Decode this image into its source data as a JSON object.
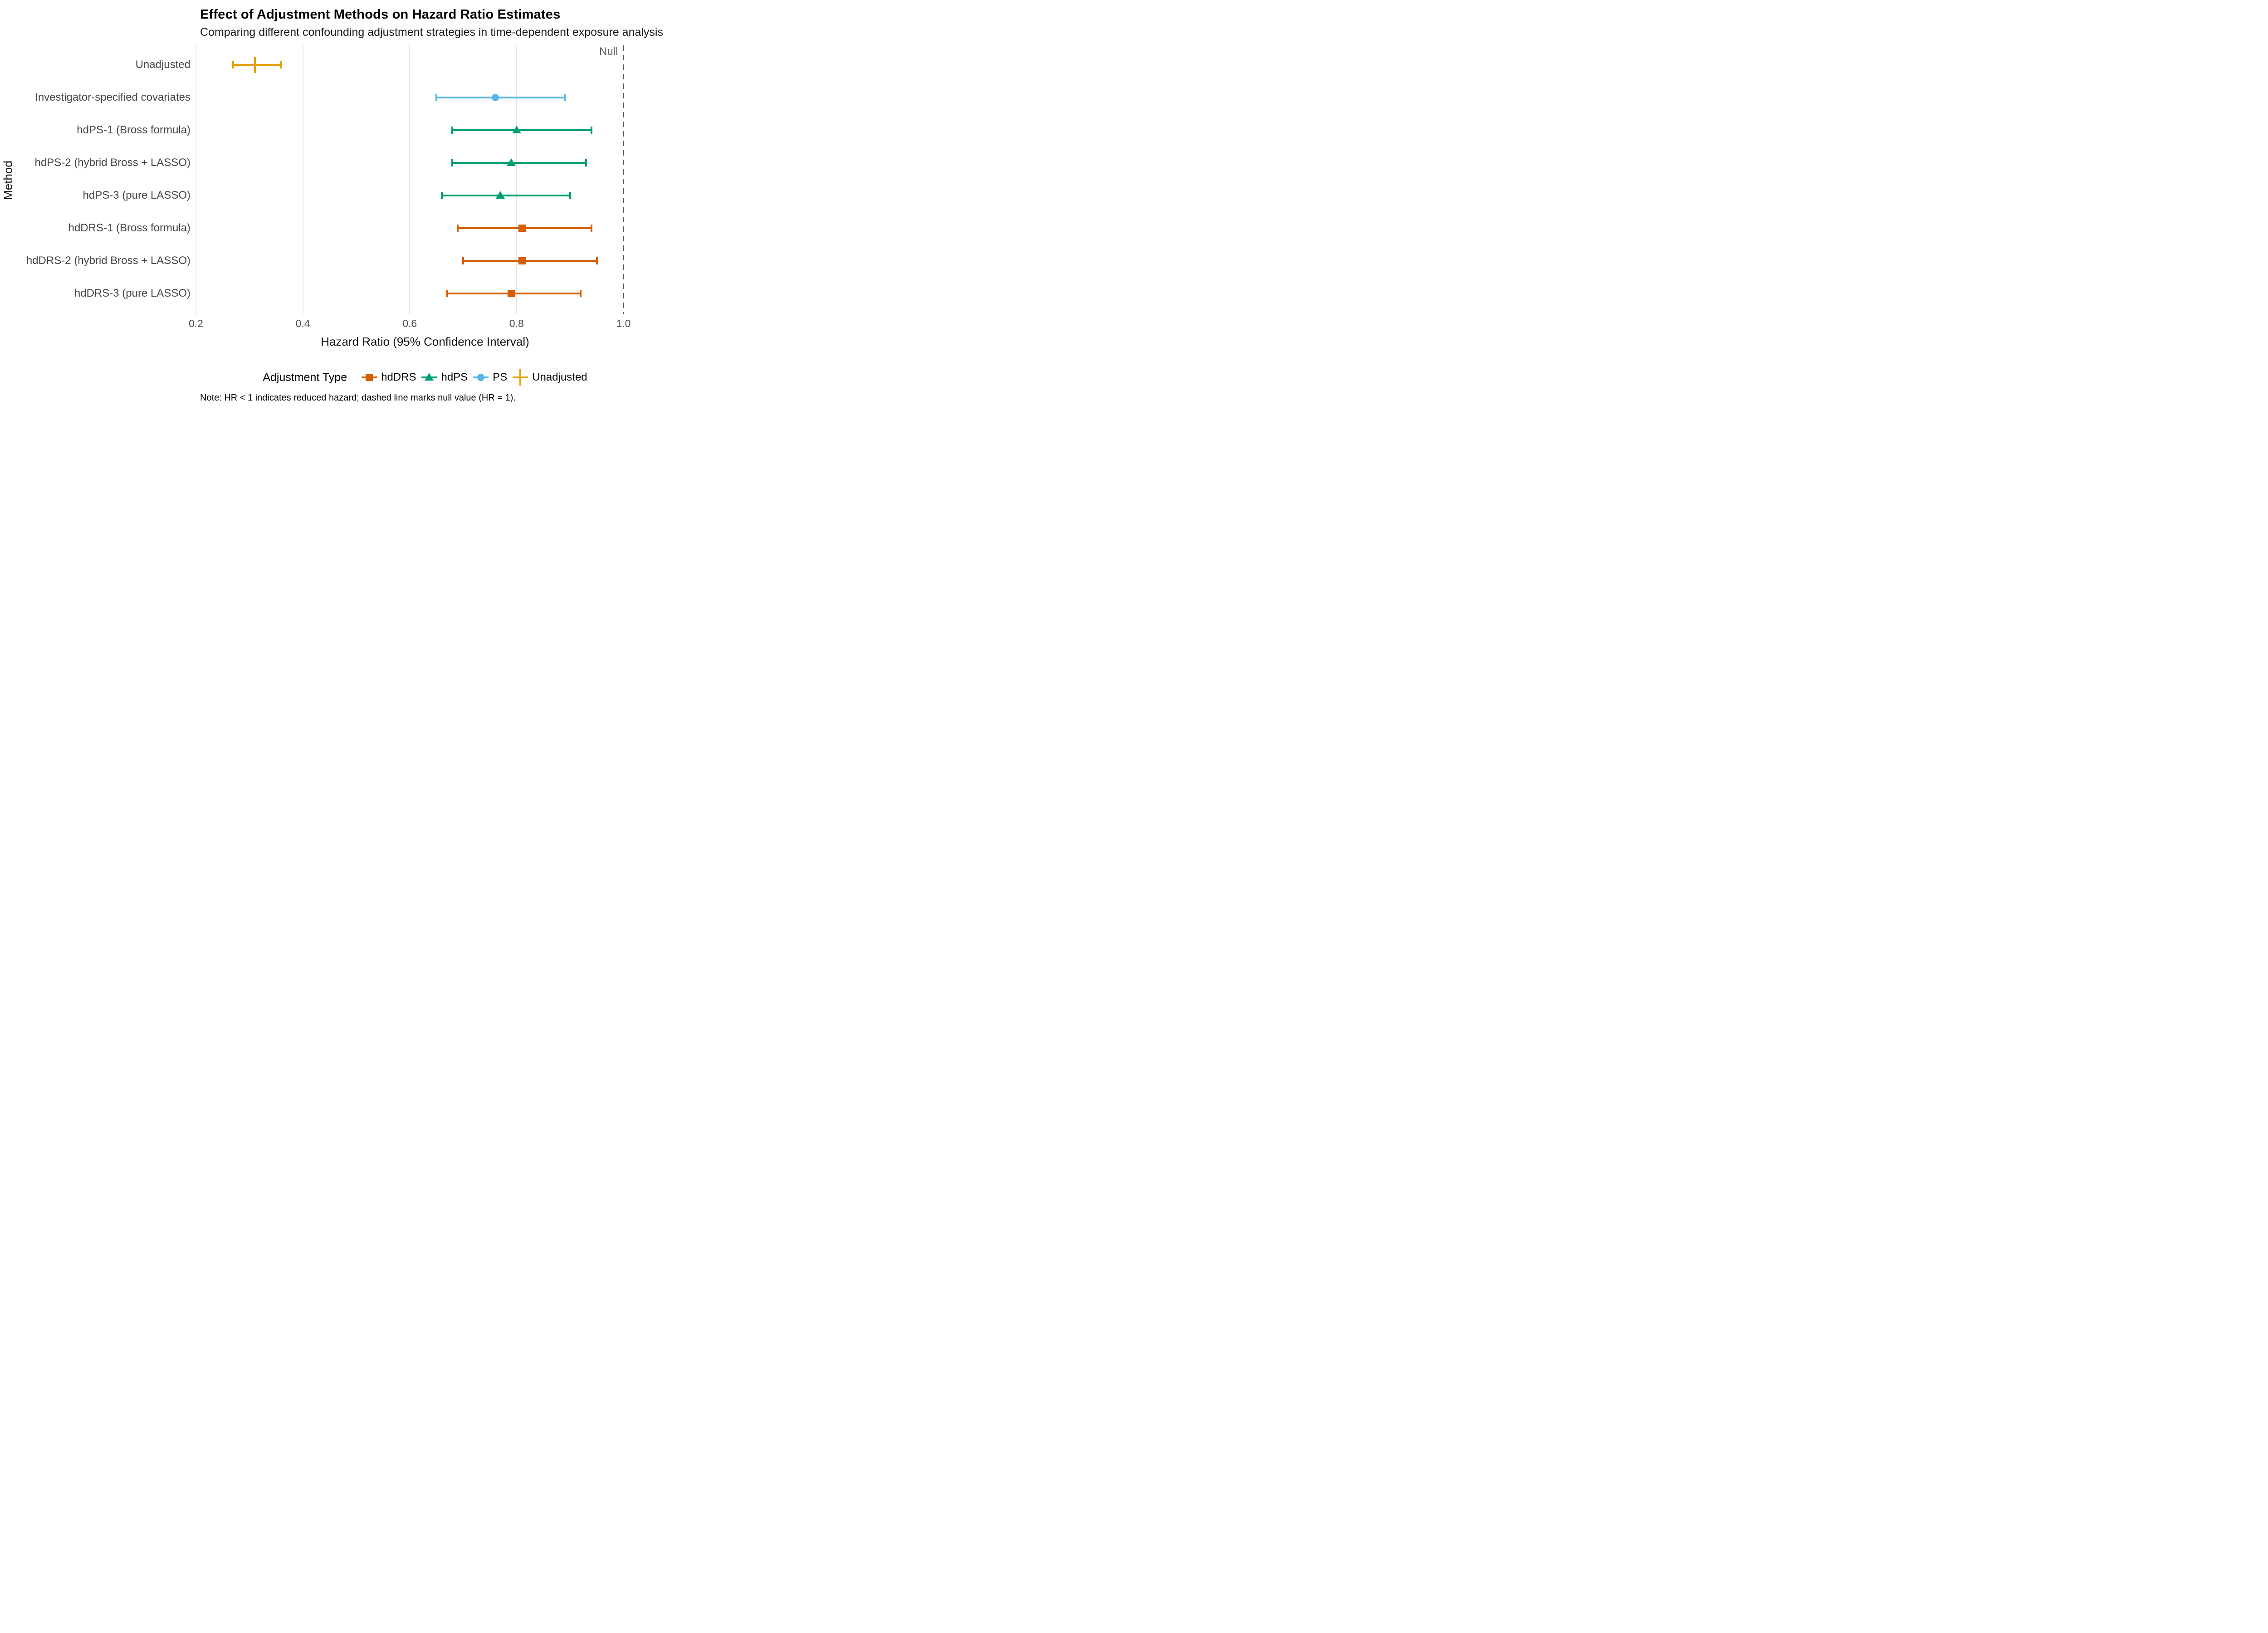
{
  "chart_data": {
    "type": "forest-errorbar",
    "title": "Effect of Adjustment Methods on Hazard Ratio Estimates",
    "subtitle": "Comparing different confounding adjustment strategies in time-dependent exposure analysis",
    "xlabel": "Hazard Ratio (95% Confidence Interval)",
    "ylabel": "Method",
    "x_ticks": [
      "0.2",
      "0.4",
      "0.6",
      "0.8",
      "1.0"
    ],
    "xlim": [
      0.17,
      1.05
    ],
    "grid": "vertical-major-only",
    "null_line": {
      "x": 1.0,
      "label": "Null"
    },
    "legend_position": "bottom",
    "legend_title": "Adjustment Type",
    "series_types": [
      {
        "name": "hdDRS",
        "shape": "square",
        "color": "#D55E00"
      },
      {
        "name": "hdPS",
        "shape": "triangle",
        "color": "#009E73"
      },
      {
        "name": "PS",
        "shape": "circle",
        "color": "#56B4E9"
      },
      {
        "name": "Unadjusted",
        "shape": "vline",
        "color": "#E69F00"
      }
    ],
    "rows": [
      {
        "method": "Unadjusted",
        "type": "Unadjusted",
        "hr": 0.31,
        "lo": 0.27,
        "hi": 0.36
      },
      {
        "method": "Investigator-specified covariates",
        "type": "PS",
        "hr": 0.76,
        "lo": 0.65,
        "hi": 0.89
      },
      {
        "method": "hdPS-1 (Bross formula)",
        "type": "hdPS",
        "hr": 0.8,
        "lo": 0.68,
        "hi": 0.94
      },
      {
        "method": "hdPS-2 (hybrid Bross + LASSO)",
        "type": "hdPS",
        "hr": 0.79,
        "lo": 0.68,
        "hi": 0.93
      },
      {
        "method": "hdPS-3 (pure LASSO)",
        "type": "hdPS",
        "hr": 0.77,
        "lo": 0.66,
        "hi": 0.9
      },
      {
        "method": "hdDRS-1 (Bross formula)",
        "type": "hdDRS",
        "hr": 0.81,
        "lo": 0.69,
        "hi": 0.94
      },
      {
        "method": "hdDRS-2 (hybrid Bross + LASSO)",
        "type": "hdDRS",
        "hr": 0.81,
        "lo": 0.7,
        "hi": 0.95
      },
      {
        "method": "hdDRS-3 (pure LASSO)",
        "type": "hdDRS",
        "hr": 0.79,
        "lo": 0.67,
        "hi": 0.92
      }
    ],
    "note": "Note: HR < 1 indicates reduced hazard; dashed line marks null value (HR = 1).",
    "colors": {
      "grid": "#E7E7E7",
      "null_line": "#555555",
      "axis_text": "#4D4D4D",
      "title_text": "#000000"
    }
  }
}
